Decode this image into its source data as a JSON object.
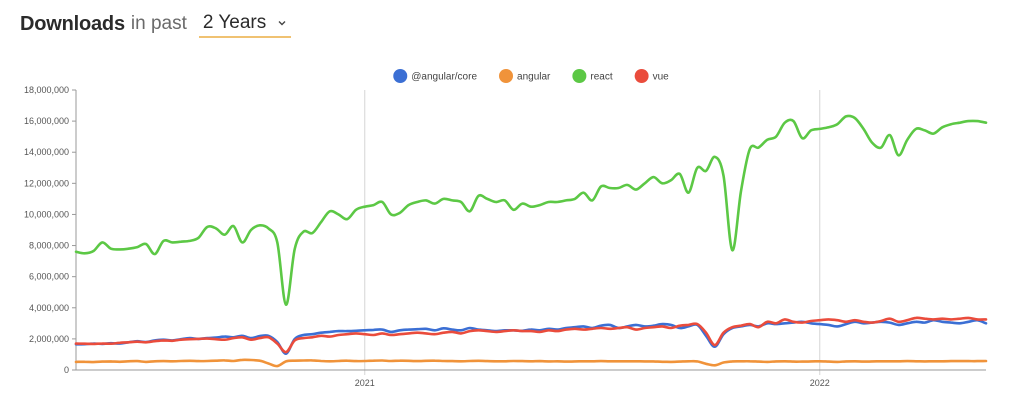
{
  "header": {
    "title": "Downloads",
    "middle": "in past",
    "period": "2 Years"
  },
  "chart_data": {
    "type": "line",
    "title": "",
    "xlabel": "",
    "ylabel": "",
    "ylim": [
      0,
      18000000
    ],
    "y_ticks": [
      0,
      2000000,
      4000000,
      6000000,
      8000000,
      10000000,
      12000000,
      14000000,
      16000000,
      18000000
    ],
    "y_tick_labels": [
      "0",
      "2,000,000",
      "4,000,000",
      "6,000,000",
      "8,000,000",
      "10,000,000",
      "12,000,000",
      "14,000,000",
      "16,000,000",
      "18,000,000"
    ],
    "x_range": [
      0,
      104
    ],
    "x_unit": "weeks",
    "x_ticks": [
      {
        "x": 33,
        "label": "2021"
      },
      {
        "x": 85,
        "label": "2022"
      }
    ],
    "grid": "vertical lines at year boundaries",
    "legend_position": "top-center",
    "x": [
      0,
      1,
      2,
      3,
      4,
      5,
      6,
      7,
      8,
      9,
      10,
      11,
      12,
      13,
      14,
      15,
      16,
      17,
      18,
      19,
      20,
      21,
      22,
      23,
      24,
      25,
      26,
      27,
      28,
      29,
      30,
      31,
      32,
      33,
      34,
      35,
      36,
      37,
      38,
      39,
      40,
      41,
      42,
      43,
      44,
      45,
      46,
      47,
      48,
      49,
      50,
      51,
      52,
      53,
      54,
      55,
      56,
      57,
      58,
      59,
      60,
      61,
      62,
      63,
      64,
      65,
      66,
      67,
      68,
      69,
      70,
      71,
      72,
      73,
      74,
      75,
      76,
      77,
      78,
      79,
      80,
      81,
      82,
      83,
      84,
      85,
      86,
      87,
      88,
      89,
      90,
      91,
      92,
      93,
      94,
      95,
      96,
      97,
      98,
      99,
      100,
      101,
      102,
      103,
      104
    ],
    "series": [
      {
        "name": "@angular/core",
        "color": "#3b6fd4",
        "values": [
          1650000,
          1660000,
          1700000,
          1680000,
          1720000,
          1700000,
          1780000,
          1850000,
          1800000,
          1900000,
          1950000,
          1900000,
          1980000,
          2050000,
          2000000,
          2050000,
          2080000,
          2150000,
          2100000,
          2200000,
          2050000,
          2180000,
          2200000,
          1800000,
          1050000,
          2000000,
          2250000,
          2300000,
          2400000,
          2450000,
          2500000,
          2500000,
          2520000,
          2550000,
          2580000,
          2600000,
          2450000,
          2550000,
          2600000,
          2620000,
          2650000,
          2550000,
          2680000,
          2600000,
          2550000,
          2700000,
          2600000,
          2550000,
          2500000,
          2550000,
          2550000,
          2520000,
          2600000,
          2550000,
          2650000,
          2600000,
          2700000,
          2750000,
          2800000,
          2700000,
          2850000,
          2900000,
          2700000,
          2800000,
          2900000,
          2800000,
          2850000,
          2950000,
          2900000,
          2700000,
          2800000,
          2900000,
          2200000,
          1500000,
          2300000,
          2700000,
          2800000,
          2900000,
          2800000,
          3000000,
          2950000,
          3000000,
          3050000,
          3100000,
          3000000,
          2950000,
          2900000,
          2800000,
          2950000,
          3100000,
          3000000,
          3050000,
          3100000,
          3050000,
          2900000,
          3000000,
          3100000,
          3050000,
          3200000,
          3100000,
          3050000,
          3000000,
          3100000,
          3200000,
          3000000
        ]
      },
      {
        "name": "angular",
        "color": "#f0933a",
        "values": [
          520000,
          530000,
          510000,
          540000,
          550000,
          530000,
          560000,
          570000,
          520000,
          560000,
          570000,
          560000,
          580000,
          590000,
          570000,
          580000,
          600000,
          620000,
          580000,
          650000,
          640000,
          600000,
          420000,
          250000,
          550000,
          600000,
          610000,
          620000,
          580000,
          560000,
          580000,
          600000,
          570000,
          580000,
          600000,
          610000,
          580000,
          600000,
          590000,
          570000,
          590000,
          600000,
          580000,
          570000,
          560000,
          580000,
          590000,
          570000,
          560000,
          560000,
          580000,
          570000,
          560000,
          570000,
          550000,
          560000,
          540000,
          550000,
          560000,
          560000,
          570000,
          560000,
          560000,
          560000,
          560000,
          550000,
          550000,
          530000,
          520000,
          540000,
          560000,
          550000,
          400000,
          300000,
          480000,
          550000,
          560000,
          560000,
          540000,
          520000,
          550000,
          560000,
          540000,
          540000,
          550000,
          560000,
          540000,
          520000,
          550000,
          560000,
          540000,
          550000,
          560000,
          560000,
          560000,
          570000,
          560000,
          550000,
          560000,
          560000,
          570000,
          570000,
          570000,
          570000,
          580000
        ]
      },
      {
        "name": "react",
        "color": "#5cc845",
        "values": [
          7600000,
          7500000,
          7650000,
          8200000,
          7800000,
          7750000,
          7800000,
          7900000,
          8100000,
          7450000,
          8300000,
          8200000,
          8250000,
          8300000,
          8500000,
          9200000,
          9100000,
          8700000,
          9250000,
          8200000,
          9000000,
          9300000,
          9100000,
          8200000,
          4200000,
          7800000,
          8900000,
          8800000,
          9500000,
          10200000,
          10000000,
          9700000,
          10300000,
          10500000,
          10600000,
          10800000,
          10000000,
          10100000,
          10600000,
          10800000,
          10900000,
          10700000,
          11000000,
          10900000,
          10800000,
          10200000,
          11200000,
          11000000,
          10800000,
          10900000,
          10300000,
          10700000,
          10500000,
          10600000,
          10800000,
          10800000,
          10900000,
          11000000,
          11400000,
          10900000,
          11800000,
          11700000,
          11700000,
          11900000,
          11600000,
          12000000,
          12400000,
          12000000,
          12200000,
          12600000,
          11400000,
          13000000,
          12800000,
          13700000,
          12500000,
          7700000,
          11500000,
          14200000,
          14300000,
          14800000,
          15000000,
          15900000,
          16000000,
          14900000,
          15400000,
          15500000,
          15600000,
          15800000,
          16300000,
          16200000,
          15500000,
          14600000,
          14300000,
          15100000,
          13800000,
          14800000,
          15500000,
          15400000,
          15200000,
          15600000,
          15800000,
          15900000,
          16000000,
          16000000,
          15900000
        ]
      },
      {
        "name": "vue",
        "color": "#ea4c3c",
        "values": [
          1700000,
          1690000,
          1680000,
          1700000,
          1690000,
          1750000,
          1780000,
          1820000,
          1780000,
          1850000,
          1900000,
          1880000,
          1950000,
          1980000,
          2000000,
          2020000,
          1980000,
          1950000,
          2050000,
          2100000,
          1950000,
          2050000,
          2100000,
          1700000,
          1150000,
          1900000,
          2050000,
          2100000,
          2200000,
          2150000,
          2250000,
          2300000,
          2350000,
          2300000,
          2250000,
          2350000,
          2250000,
          2300000,
          2350000,
          2400000,
          2350000,
          2300000,
          2400000,
          2450000,
          2350000,
          2500000,
          2550000,
          2500000,
          2450000,
          2500000,
          2550000,
          2500000,
          2500000,
          2450000,
          2550000,
          2500000,
          2600000,
          2650000,
          2600000,
          2650000,
          2700000,
          2650000,
          2700000,
          2750000,
          2600000,
          2700000,
          2750000,
          2800000,
          2700000,
          2850000,
          2900000,
          2950000,
          2400000,
          1600000,
          2400000,
          2750000,
          2850000,
          2950000,
          2750000,
          3100000,
          3000000,
          3250000,
          3100000,
          3050000,
          3150000,
          3200000,
          3250000,
          3200000,
          3100000,
          3200000,
          3100000,
          3050000,
          3150000,
          3300000,
          3100000,
          3200000,
          3350000,
          3300000,
          3250000,
          3300000,
          3250000,
          3300000,
          3350000,
          3250000,
          3250000
        ]
      }
    ]
  }
}
